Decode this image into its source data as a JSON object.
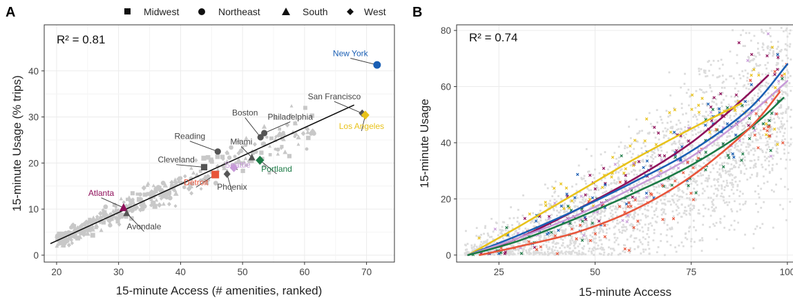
{
  "legend": {
    "items": [
      {
        "label": "Midwest",
        "shape": "square"
      },
      {
        "label": "Northeast",
        "shape": "circle"
      },
      {
        "label": "South",
        "shape": "triangle"
      },
      {
        "label": "West",
        "shape": "diamond"
      }
    ]
  },
  "colors": {
    "background_points": "#c8c8c8",
    "background_points_b": "#dcdcdc",
    "grid": "#ebebeb",
    "fit_line": "#111111",
    "New York": "#1a5fb4",
    "Los Angeles": "#e8c21a",
    "Portland": "#1b7a45",
    "Seattle": "#c79ad8",
    "Detroit": "#e8553a",
    "Atlanta": "#8e0f5a",
    "labels_default": "#444444"
  },
  "chart_data": [
    {
      "type": "scatter",
      "panel_label": "A",
      "annotation": "R² = 0.81",
      "xlabel": "15-minute Access (# amenities, ranked)",
      "ylabel": "15-minute Usage (% trips)",
      "xlim": [
        18,
        74.5
      ],
      "ylim": [
        -1.5,
        50
      ],
      "xticks": [
        20,
        30,
        40,
        50,
        60,
        70
      ],
      "yticks": [
        0,
        10,
        20,
        30,
        40
      ],
      "grid": true,
      "legend_position": "top",
      "fit_line": {
        "x": [
          19,
          68
        ],
        "y": [
          2.5,
          32.6
        ]
      },
      "highlighted": [
        {
          "city": "New York",
          "x": 71.7,
          "y": 41.3,
          "shape": "circle",
          "color": "#1a5fb4",
          "label": "New York",
          "label_x": 67.4,
          "label_y": 43.2
        },
        {
          "city": "San Francisco",
          "x": 69.3,
          "y": 30.8,
          "shape": "diamond",
          "color": "#555555",
          "label": "San Francisco",
          "label_x": 64.8,
          "label_y": 33.8
        },
        {
          "city": "Los Angeles",
          "x": 69.8,
          "y": 30.4,
          "shape": "diamond",
          "color": "#e8c21a",
          "label": "Los Angeles",
          "label_x": 69.2,
          "label_y": 27.4
        },
        {
          "city": "Boston",
          "x": 52.9,
          "y": 25.6,
          "shape": "circle",
          "color": "#555555",
          "label": "Boston",
          "label_x": 50.4,
          "label_y": 30.3
        },
        {
          "city": "Philadelphia",
          "x": 53.5,
          "y": 26.5,
          "shape": "circle",
          "color": "#555555",
          "label": "Philadelphia",
          "label_x": 57.7,
          "label_y": 29.4
        },
        {
          "city": "Reading",
          "x": 46.0,
          "y": 22.5,
          "shape": "circle",
          "color": "#555555",
          "label": "Reading",
          "label_x": 41.5,
          "label_y": 25.2
        },
        {
          "city": "Miami",
          "x": 51.5,
          "y": 21.2,
          "shape": "triangle",
          "color": "#555555",
          "label": "Miami",
          "label_x": 49.8,
          "label_y": 24.0
        },
        {
          "city": "Cleveland",
          "x": 43.8,
          "y": 19.1,
          "shape": "square",
          "color": "#555555",
          "label": "Cleveland",
          "label_x": 39.3,
          "label_y": 20.1
        },
        {
          "city": "Seattle",
          "x": 48.6,
          "y": 19.0,
          "shape": "diamond",
          "color": "#c79ad8",
          "label": "Seattle",
          "label_x": 49.2,
          "label_y": 19.0
        },
        {
          "city": "Portland",
          "x": 52.8,
          "y": 20.6,
          "shape": "diamond",
          "color": "#1b7a45",
          "label": "Portland",
          "label_x": 55.5,
          "label_y": 18.1
        },
        {
          "city": "Detroit",
          "x": 45.6,
          "y": 17.5,
          "shape": "square",
          "color": "#e8553a",
          "label": "Detroit",
          "label_x": 42.5,
          "label_y": 15.2
        },
        {
          "city": "Phoenix",
          "x": 47.5,
          "y": 17.6,
          "shape": "diamond",
          "color": "#555555",
          "label": "Phoenix",
          "label_x": 48.3,
          "label_y": 14.2
        },
        {
          "city": "Atlanta",
          "x": 30.8,
          "y": 10.3,
          "shape": "triangle",
          "color": "#8e0f5a",
          "label": "Atlanta",
          "label_x": 27.2,
          "label_y": 12.9
        },
        {
          "city": "Avondale",
          "x": 31.3,
          "y": 9.1,
          "shape": "triangle",
          "color": "#555555",
          "label": "Avondale",
          "label_x": 34.1,
          "label_y": 5.6
        }
      ]
    },
    {
      "type": "scatter",
      "panel_label": "B",
      "annotation": "R² = 0.74",
      "xlabel": "15-minute Access",
      "ylabel": "15-minute Usage",
      "xlim": [
        14,
        102
      ],
      "ylim": [
        -2.5,
        82
      ],
      "xticks": [
        25,
        50,
        75,
        100
      ],
      "yticks": [
        0,
        20,
        40,
        60,
        80
      ],
      "grid": true,
      "curves": [
        {
          "name": "Atlanta",
          "color": "#8e0f5a",
          "x": [
            17,
            30,
            45,
            60,
            75,
            88,
            95
          ],
          "y": [
            0,
            6,
            16,
            27,
            40,
            55,
            64
          ]
        },
        {
          "name": "Los Angeles",
          "color": "#e8c21a",
          "x": [
            17,
            30,
            45,
            60,
            75,
            88
          ],
          "y": [
            0,
            10,
            22,
            34,
            45,
            54
          ]
        },
        {
          "name": "New York",
          "color": "#1a5fb4",
          "x": [
            17,
            30,
            45,
            60,
            75,
            90,
            100
          ],
          "y": [
            0,
            7,
            16,
            26,
            37,
            52,
            68
          ]
        },
        {
          "name": "Seattle",
          "color": "#c79ad8",
          "x": [
            17,
            30,
            45,
            60,
            75,
            90,
            100
          ],
          "y": [
            0,
            6,
            14,
            24,
            35,
            50,
            62
          ]
        },
        {
          "name": "Portland",
          "color": "#1b7a45",
          "x": [
            17,
            30,
            45,
            60,
            75,
            90,
            99
          ],
          "y": [
            0,
            5,
            13,
            22,
            32,
            45,
            56
          ]
        },
        {
          "name": "Detroit",
          "color": "#e8553a",
          "x": [
            20,
            30,
            45,
            60,
            75,
            90,
            98
          ],
          "y": [
            0,
            3,
            8,
            16,
            28,
            45,
            58
          ]
        }
      ]
    }
  ]
}
